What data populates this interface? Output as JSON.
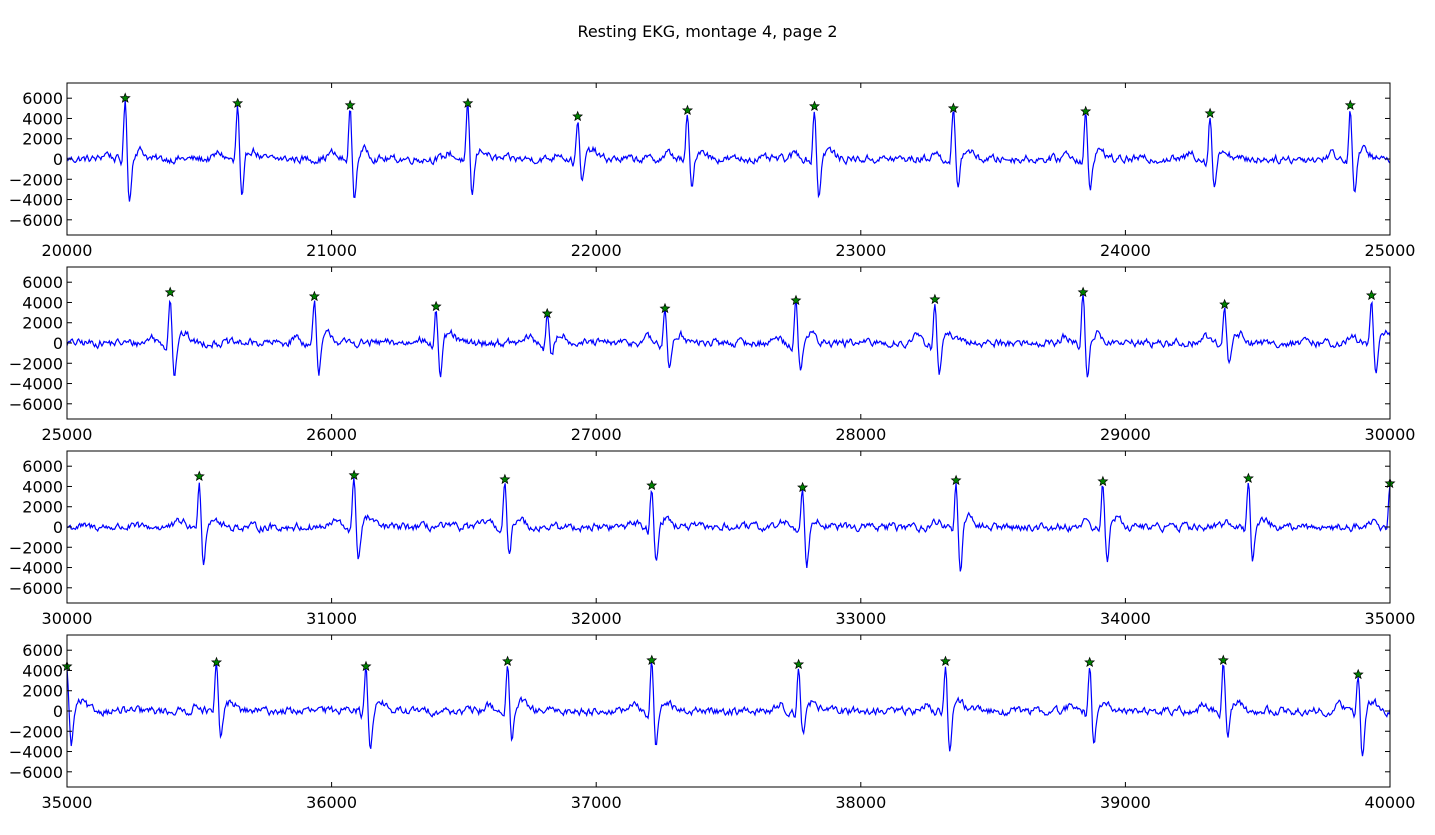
{
  "figure": {
    "title": "Resting EKG, montage 4, page 2"
  },
  "colors": {
    "trace": "#0000ff",
    "marker_fill": "#008000",
    "marker_edge": "#000000",
    "axes": "#000000",
    "background": "#ffffff"
  },
  "chart_data": [
    {
      "type": "line",
      "panel": 1,
      "title": "",
      "xlabel": "",
      "ylabel": "",
      "xlim": [
        20000,
        25000
      ],
      "ylim": [
        -7500,
        7500
      ],
      "xticks": [
        "20000",
        "21000",
        "22000",
        "23000",
        "24000",
        "25000"
      ],
      "yticks": [
        "6000",
        "4000",
        "2000",
        "0",
        "−2000",
        "−4000",
        "−6000"
      ],
      "grid": false,
      "series": [
        {
          "kind": "ecg-trace",
          "baseline_noise": 450,
          "peaks": [
            {
              "x": 20220,
              "y": 6000
            },
            {
              "x": 20645,
              "y": 5500
            },
            {
              "x": 21070,
              "y": 5300
            },
            {
              "x": 21515,
              "y": 5500
            },
            {
              "x": 21930,
              "y": 4200
            },
            {
              "x": 22345,
              "y": 4800
            },
            {
              "x": 22825,
              "y": 5200
            },
            {
              "x": 23350,
              "y": 5000
            },
            {
              "x": 23850,
              "y": 4700
            },
            {
              "x": 24320,
              "y": 4500
            },
            {
              "x": 24850,
              "y": 5300
            }
          ],
          "troughs": [
            -4300,
            -4300,
            -4200,
            -3800,
            -2600,
            -3300,
            -3800,
            -3000,
            -3400,
            -2900,
            -3500
          ]
        }
      ],
      "markers": {
        "shape": "star",
        "on": "peaks"
      }
    },
    {
      "type": "line",
      "panel": 2,
      "title": "",
      "xlabel": "",
      "ylabel": "",
      "xlim": [
        25000,
        30000
      ],
      "ylim": [
        -7500,
        7500
      ],
      "xticks": [
        "25000",
        "26000",
        "27000",
        "28000",
        "29000",
        "30000"
      ],
      "yticks": [
        "6000",
        "4000",
        "2000",
        "0",
        "−2000",
        "−4000",
        "−6000"
      ],
      "grid": false,
      "series": [
        {
          "kind": "ecg-trace",
          "baseline_noise": 450,
          "peaks": [
            {
              "x": 25390,
              "y": 5000
            },
            {
              "x": 25935,
              "y": 4600
            },
            {
              "x": 26395,
              "y": 3600
            },
            {
              "x": 26815,
              "y": 2900
            },
            {
              "x": 27260,
              "y": 3400
            },
            {
              "x": 27755,
              "y": 4200
            },
            {
              "x": 28280,
              "y": 4300
            },
            {
              "x": 28840,
              "y": 5000
            },
            {
              "x": 29375,
              "y": 3800
            },
            {
              "x": 29930,
              "y": 4700
            }
          ],
          "troughs": [
            -3500,
            -3500,
            -3500,
            -1500,
            -2600,
            -2700,
            -3300,
            -3300,
            -2000,
            -3200
          ]
        }
      ],
      "markers": {
        "shape": "star",
        "on": "peaks"
      }
    },
    {
      "type": "line",
      "panel": 3,
      "title": "",
      "xlabel": "",
      "ylabel": "",
      "xlim": [
        30000,
        35000
      ],
      "ylim": [
        -7500,
        7500
      ],
      "xticks": [
        "30000",
        "31000",
        "32000",
        "33000",
        "34000",
        "35000"
      ],
      "yticks": [
        "6000",
        "4000",
        "2000",
        "0",
        "−2000",
        "−4000",
        "−6000"
      ],
      "grid": false,
      "series": [
        {
          "kind": "ecg-trace",
          "baseline_noise": 450,
          "peaks": [
            {
              "x": 30500,
              "y": 5000
            },
            {
              "x": 31085,
              "y": 5100
            },
            {
              "x": 31655,
              "y": 4700
            },
            {
              "x": 32210,
              "y": 4100
            },
            {
              "x": 32780,
              "y": 3900
            },
            {
              "x": 33360,
              "y": 4600
            },
            {
              "x": 33915,
              "y": 4500
            },
            {
              "x": 34465,
              "y": 4800
            },
            {
              "x": 35000,
              "y": 4300
            }
          ],
          "troughs": [
            -3700,
            -3400,
            -3300,
            -3300,
            -3800,
            -4400,
            -3400,
            -3500,
            -2200
          ]
        }
      ],
      "markers": {
        "shape": "star",
        "on": "peaks"
      }
    },
    {
      "type": "line",
      "panel": 4,
      "title": "",
      "xlabel": "",
      "ylabel": "",
      "xlim": [
        35000,
        40000
      ],
      "ylim": [
        -7500,
        7500
      ],
      "xticks": [
        "35000",
        "36000",
        "37000",
        "38000",
        "39000",
        "40000"
      ],
      "yticks": [
        "6000",
        "4000",
        "2000",
        "0",
        "−2000",
        "−4000",
        "−6000"
      ],
      "grid": false,
      "series": [
        {
          "kind": "ecg-trace",
          "baseline_noise": 450,
          "peaks": [
            {
              "x": 35000,
              "y": 4400
            },
            {
              "x": 35565,
              "y": 4800
            },
            {
              "x": 36130,
              "y": 4400
            },
            {
              "x": 36665,
              "y": 4900
            },
            {
              "x": 37210,
              "y": 5000
            },
            {
              "x": 37765,
              "y": 4600
            },
            {
              "x": 38320,
              "y": 4900
            },
            {
              "x": 38865,
              "y": 4800
            },
            {
              "x": 39370,
              "y": 5000
            },
            {
              "x": 39880,
              "y": 3600
            }
          ],
          "troughs": [
            -3600,
            -2900,
            -3700,
            -3400,
            -3500,
            -2400,
            -3700,
            -3500,
            -2600,
            -4600
          ]
        }
      ],
      "markers": {
        "shape": "star",
        "on": "peaks"
      }
    }
  ]
}
